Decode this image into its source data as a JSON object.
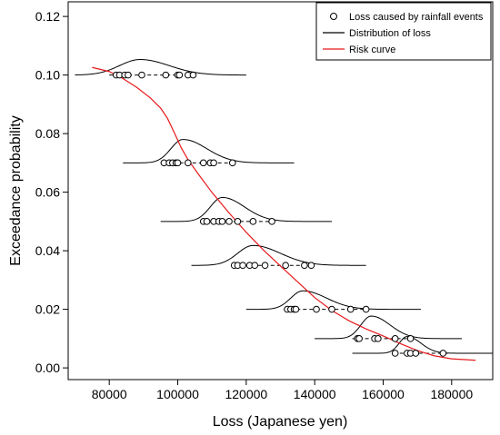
{
  "chart_data": {
    "type": "scatter",
    "xlabel": "Loss (Japanese yen)",
    "ylabel": "Exceedance probability",
    "xlim": [
      68000,
      192000
    ],
    "ylim": [
      -0.004,
      0.125
    ],
    "x_ticks": [
      80000,
      100000,
      120000,
      140000,
      160000,
      180000
    ],
    "x_tick_labels": [
      "80000",
      "100000",
      "120000",
      "140000",
      "160000",
      "180000"
    ],
    "y_ticks": [
      0.0,
      0.02,
      0.04,
      0.06,
      0.08,
      0.1,
      0.12
    ],
    "y_tick_labels": [
      "0.00",
      "0.02",
      "0.04",
      "0.06",
      "0.08",
      "0.10",
      "0.12"
    ],
    "grid": false,
    "legend_position": "top-right",
    "legend": [
      {
        "label": "Loss caused by rainfall events",
        "marker": "open-circle",
        "color": "#000000"
      },
      {
        "label": "Distribution of loss",
        "marker": "line",
        "color": "#000000"
      },
      {
        "label": "Risk curve",
        "marker": "line",
        "color": "#e8191b"
      }
    ],
    "groups": [
      {
        "probability": 0.1,
        "loss_points": [
          82000,
          83000,
          84500,
          85500,
          89500,
          96500,
          100000,
          100500,
          103000,
          104500
        ],
        "dashed_range": [
          80000,
          105000
        ],
        "distribution": {
          "mode": 89000,
          "sigma_left": 6000,
          "sigma_right": 8500,
          "peak_height": 0.0053,
          "range": [
            70000,
            120000
          ]
        }
      },
      {
        "probability": 0.07,
        "loss_points": [
          96000,
          97500,
          98500,
          99500,
          100000,
          103000,
          107500,
          109500,
          110500,
          116000
        ],
        "dashed_range": [
          95000,
          116000
        ],
        "distribution": {
          "mode": 101500,
          "sigma_left": 3500,
          "sigma_right": 7000,
          "peak_height": 0.008,
          "range": [
            84000,
            134000
          ]
        }
      },
      {
        "probability": 0.05,
        "loss_points": [
          107500,
          108500,
          110500,
          112000,
          113000,
          115000,
          117500,
          122000,
          127500
        ],
        "dashed_range": [
          107000,
          128000
        ],
        "distribution": {
          "mode": 113000,
          "sigma_left": 3500,
          "sigma_right": 6500,
          "peak_height": 0.0082,
          "range": [
            95000,
            145000
          ]
        }
      },
      {
        "probability": 0.035,
        "loss_points": [
          116500,
          117500,
          119000,
          121000,
          122500,
          125500,
          131500,
          137000,
          139000
        ],
        "dashed_range": [
          116000,
          140000
        ],
        "distribution": {
          "mode": 122000,
          "sigma_left": 4500,
          "sigma_right": 8000,
          "peak_height": 0.0068,
          "range": [
            104000,
            155000
          ]
        }
      },
      {
        "probability": 0.02,
        "loss_points": [
          132000,
          133000,
          134000,
          134500,
          140500,
          145000,
          150500,
          155000
        ],
        "dashed_range": [
          131000,
          156000
        ],
        "distribution": {
          "mode": 136500,
          "sigma_left": 3500,
          "sigma_right": 7000,
          "peak_height": 0.0063,
          "range": [
            120000,
            171000
          ]
        }
      },
      {
        "probability": 0.01,
        "loss_points": [
          152500,
          153000,
          157500,
          158500,
          163500,
          168000
        ],
        "dashed_range": [
          151000,
          168000
        ],
        "distribution": {
          "mode": 156500,
          "sigma_left": 3000,
          "sigma_right": 5500,
          "peak_height": 0.0077,
          "range": [
            140000,
            183000
          ]
        }
      },
      {
        "probability": 0.005,
        "loss_points": [
          163500,
          167000,
          168000,
          169500,
          177500
        ],
        "dashed_range": [
          163000,
          179000
        ],
        "distribution": {
          "mode": 167000,
          "sigma_left": 2300,
          "sigma_right": 4000,
          "peak_height": 0.0057,
          "range": [
            151000,
            192000
          ]
        }
      }
    ],
    "risk_curve": {
      "x": [
        75000,
        80000,
        84000,
        88000,
        92000,
        95000,
        97000,
        99000,
        101000,
        103000,
        106000,
        110000,
        115000,
        120000,
        125000,
        130000,
        135000,
        140000,
        145000,
        150000,
        155000,
        160000,
        165000,
        170000,
        175000,
        180000,
        187000
      ],
      "y": [
        0.1026,
        0.1012,
        0.0988,
        0.0958,
        0.0922,
        0.0887,
        0.0852,
        0.0803,
        0.0752,
        0.0711,
        0.0662,
        0.0599,
        0.0529,
        0.0463,
        0.0403,
        0.0348,
        0.0294,
        0.024,
        0.0196,
        0.0161,
        0.0133,
        0.0109,
        0.0083,
        0.0059,
        0.0041,
        0.0031,
        0.0026
      ]
    }
  }
}
